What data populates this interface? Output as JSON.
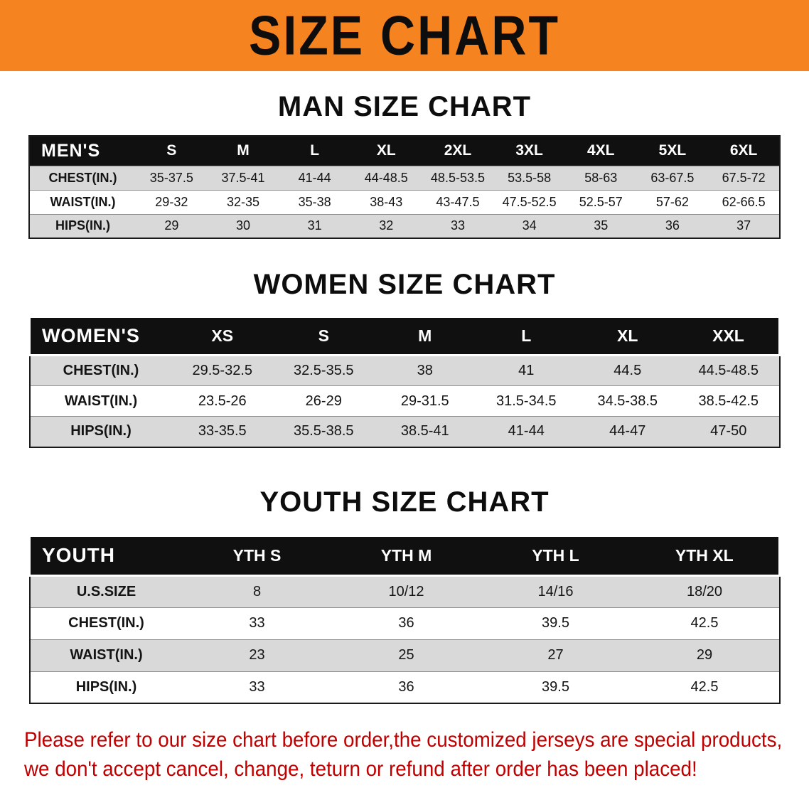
{
  "banner": {
    "title": "SIZE CHART"
  },
  "sections": [
    {
      "id": "men",
      "heading": "MAN SIZE CHART",
      "table": {
        "header": [
          "MEN'S",
          "S",
          "M",
          "L",
          "XL",
          "2XL",
          "3XL",
          "4XL",
          "5XL",
          "6XL"
        ],
        "rows": [
          [
            "CHEST(IN.)",
            "35-37.5",
            "37.5-41",
            "41-44",
            "44-48.5",
            "48.5-53.5",
            "53.5-58",
            "58-63",
            "63-67.5",
            "67.5-72"
          ],
          [
            "WAIST(IN.)",
            "29-32",
            "32-35",
            "35-38",
            "38-43",
            "43-47.5",
            "47.5-52.5",
            "52.5-57",
            "57-62",
            "62-66.5"
          ],
          [
            "HIPS(IN.)",
            "29",
            "30",
            "31",
            "32",
            "33",
            "34",
            "35",
            "36",
            "37"
          ]
        ]
      }
    },
    {
      "id": "women",
      "heading": "WOMEN SIZE CHART",
      "table": {
        "header": [
          "WOMEN'S",
          "XS",
          "S",
          "M",
          "L",
          "XL",
          "XXL"
        ],
        "rows": [
          [
            "CHEST(IN.)",
            "29.5-32.5",
            "32.5-35.5",
            "38",
            "41",
            "44.5",
            "44.5-48.5"
          ],
          [
            "WAIST(IN.)",
            "23.5-26",
            "26-29",
            "29-31.5",
            "31.5-34.5",
            "34.5-38.5",
            "38.5-42.5"
          ],
          [
            "HIPS(IN.)",
            "33-35.5",
            "35.5-38.5",
            "38.5-41",
            "41-44",
            "44-47",
            "47-50"
          ]
        ]
      }
    },
    {
      "id": "youth",
      "heading": "YOUTH SIZE CHART",
      "table": {
        "header": [
          "YOUTH",
          "YTH S",
          "YTH M",
          "YTH L",
          "YTH XL"
        ],
        "rows": [
          [
            "U.S.SIZE",
            "8",
            "10/12",
            "14/16",
            "18/20"
          ],
          [
            "CHEST(IN.)",
            "33",
            "36",
            "39.5",
            "42.5"
          ],
          [
            "WAIST(IN.)",
            "23",
            "25",
            "27",
            "29"
          ],
          [
            "HIPS(IN.)",
            "33",
            "36",
            "39.5",
            "42.5"
          ]
        ]
      }
    }
  ],
  "disclaimer": {
    "lines": [
      "Please refer to our size chart before order,the customized jerseys are special products,",
      "we don't accept cancel, change, teturn or refund after order has been placed!"
    ],
    "color": "#c00000"
  },
  "colors": {
    "banner_bg": "#f5831f",
    "header_bg": "#101010",
    "stripe_bg": "#d9d9d9"
  }
}
